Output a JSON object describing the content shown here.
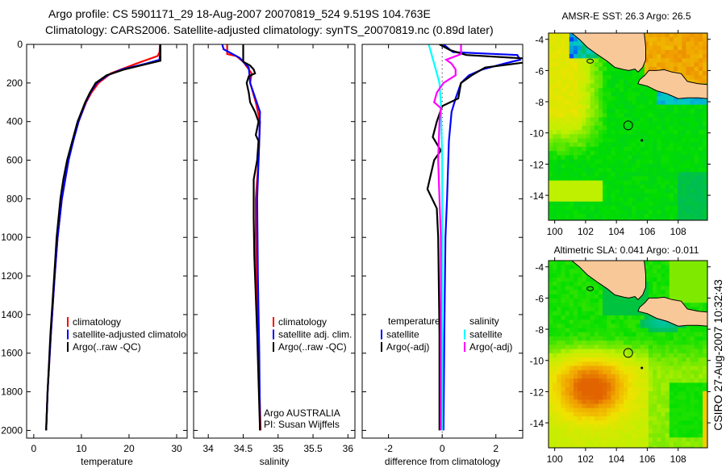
{
  "header": {
    "line1": "Argo profile: CS 5901171_29 18-Aug-2007 20070819_524 9.519S 104.763E",
    "line2": "Climatology: CARS2006. Satellite-adjusted climatology: synTS_20070819.nc (0.89d later)"
  },
  "footer": {
    "stamp": "CSIRO 27-Aug-2007 10:32:43",
    "credit1": "Argo AUSTRALIA",
    "credit2": "PI: Susan Wijffels"
  },
  "colors": {
    "red": "#ff0000",
    "blue": "#0000ff",
    "black": "#000000",
    "cyan": "#00ffff",
    "magenta": "#ff00ff",
    "land": "#f9c898"
  },
  "chart_data": [
    {
      "type": "line",
      "id": "temperature",
      "xlabel": "temperature",
      "ylabel": "",
      "xlim": [
        -1.5,
        32.2
      ],
      "ylim": [
        2040,
        0
      ],
      "xticks": [
        "0",
        "10",
        "20",
        "30"
      ],
      "xtick_values": [
        0,
        10,
        20,
        30
      ],
      "yticks": [
        "0",
        "200",
        "400",
        "600",
        "800",
        "1000",
        "1200",
        "1400",
        "1600",
        "1800",
        "2000"
      ],
      "ytick_values": [
        0,
        200,
        400,
        600,
        800,
        1000,
        1200,
        1400,
        1600,
        1800,
        2000
      ],
      "legend": [
        {
          "label": "climatology",
          "color": "#ff0000"
        },
        {
          "label": "satellite-adjusted climatology",
          "color": "#0000ff"
        },
        {
          "label": "Argo(..raw -QC)",
          "color": "#000000"
        }
      ],
      "series": [
        {
          "name": "climatology",
          "color": "#ff0000",
          "depth": [
            0,
            40,
            60,
            100,
            150,
            200,
            250,
            300,
            400,
            500,
            600,
            800,
            1000,
            1200,
            1500,
            1800,
            2000
          ],
          "values": [
            26.5,
            26.4,
            26,
            21.5,
            16.2,
            13.6,
            12.1,
            11,
            9.4,
            8.2,
            7.3,
            5.9,
            5.0,
            4.4,
            3.6,
            2.9,
            2.6
          ]
        },
        {
          "name": "satellite-adjusted climatology",
          "color": "#0000ff",
          "depth": [
            0,
            80,
            100,
            130,
            160,
            200,
            250,
            300,
            400,
            500,
            600,
            800,
            1000,
            1200,
            1500,
            1800,
            2000
          ],
          "values": [
            26.6,
            26.4,
            23.5,
            18.5,
            15.5,
            13.2,
            11.9,
            10.9,
            9.4,
            8.3,
            7.3,
            5.9,
            5.0,
            4.4,
            3.6,
            2.9,
            2.6
          ]
        },
        {
          "name": "Argo(..raw -QC)",
          "color": "#000000",
          "depth": [
            0,
            85,
            100,
            130,
            160,
            200,
            250,
            300,
            400,
            500,
            600,
            700,
            800,
            1000,
            1200,
            1500,
            1800,
            2000
          ],
          "values": [
            26.6,
            26.6,
            24,
            19,
            15.3,
            13.0,
            11.8,
            10.8,
            9.2,
            8.1,
            7.0,
            6.2,
            5.6,
            4.8,
            4.3,
            3.5,
            2.9,
            2.6
          ]
        }
      ]
    },
    {
      "type": "line",
      "id": "salinity",
      "xlabel": "salinity",
      "xlim": [
        33.79,
        36.1
      ],
      "ylim": [
        2040,
        0
      ],
      "xticks": [
        "34",
        "34.5",
        "35",
        "35.5",
        "36"
      ],
      "xtick_values": [
        34,
        34.5,
        35,
        35.5,
        36
      ],
      "legend": [
        {
          "label": "climatology",
          "color": "#ff0000"
        },
        {
          "label": "satellite adj. clim.",
          "color": "#0000ff"
        },
        {
          "label": "Argo(..raw -QC)",
          "color": "#000000"
        }
      ],
      "series": [
        {
          "name": "climatology",
          "color": "#ff0000",
          "depth": [
            0,
            50,
            60,
            90,
            150,
            200,
            300,
            400,
            600,
            800,
            1000,
            1500,
            2000
          ],
          "values": [
            34.27,
            34.27,
            34.4,
            34.5,
            34.62,
            34.6,
            34.68,
            34.74,
            34.72,
            34.68,
            34.68,
            34.71,
            34.75
          ]
        },
        {
          "name": "satellite adj. clim.",
          "color": "#0000ff",
          "depth": [
            0,
            25,
            70,
            120,
            200,
            350,
            500,
            800,
            1200,
            1600,
            2000
          ],
          "values": [
            34.2,
            34.22,
            34.45,
            34.58,
            34.6,
            34.74,
            34.73,
            34.7,
            34.71,
            34.73,
            34.74
          ]
        },
        {
          "name": "Argo(..raw -QC)",
          "color": "#000000",
          "depth": [
            0,
            90,
            110,
            130,
            150,
            165,
            200,
            250,
            300,
            350,
            400,
            470,
            500,
            600,
            700,
            900,
            1100,
            1500,
            2000
          ],
          "values": [
            34.5,
            34.5,
            34.6,
            34.65,
            34.67,
            34.58,
            34.55,
            34.58,
            34.6,
            34.67,
            34.72,
            34.68,
            34.72,
            34.7,
            34.65,
            34.65,
            34.66,
            34.7,
            34.74
          ]
        }
      ]
    },
    {
      "type": "line",
      "id": "difference",
      "xlabel": "difference from climatology",
      "xlim": [
        -2.98,
        3.0
      ],
      "ylim": [
        2040,
        0
      ],
      "xticks": [
        "-2",
        "0",
        "2"
      ],
      "xtick_values": [
        -2,
        0,
        2
      ],
      "legend_titles": [
        "temperature",
        "salinity"
      ],
      "legend": [
        {
          "label": "satellite",
          "color": "#0000ff",
          "group": "temperature"
        },
        {
          "label": "Argo(-adj)",
          "color": "#000000",
          "group": "temperature"
        },
        {
          "label": "satellite",
          "color": "#00ffff",
          "group": "salinity"
        },
        {
          "label": "Argo(-adj)",
          "color": "#ff00ff",
          "group": "salinity"
        }
      ],
      "series": [
        {
          "name": "temperature satellite",
          "color": "#0000ff",
          "depth": [
            0,
            40,
            55,
            80,
            100,
            130,
            160,
            200,
            280,
            350,
            500,
            800,
            1000,
            1500,
            2000
          ],
          "values": [
            0.05,
            0.4,
            2.8,
            2.9,
            2.3,
            1.5,
            1.0,
            0.7,
            0.5,
            0.35,
            0.25,
            0.18,
            0.12,
            0.08,
            0.05
          ]
        },
        {
          "name": "temperature Argo(-adj)",
          "color": "#000000",
          "depth": [
            0,
            30,
            55,
            75,
            95,
            120,
            160,
            200,
            280,
            320,
            400,
            480,
            550,
            600,
            750,
            850,
            1000,
            1500,
            2000
          ],
          "values": [
            -0.1,
            0.3,
            0.9,
            3.3,
            3.0,
            1.6,
            1.1,
            0.7,
            0.6,
            0.0,
            -0.2,
            -0.35,
            -0.05,
            -0.3,
            -0.55,
            -0.2,
            -0.15,
            -0.1,
            -0.1
          ]
        },
        {
          "name": "salinity satellite",
          "color": "#00ffff",
          "depth": [
            0,
            100,
            200,
            300,
            600,
            1000,
            2000
          ],
          "values": [
            -0.5,
            -0.3,
            -0.1,
            -0.05,
            0.0,
            0.0,
            0.0
          ]
        },
        {
          "name": "salinity Argo(-adj)",
          "color": "#ff00ff",
          "depth": [
            0,
            50,
            80,
            100,
            130,
            160,
            200,
            250,
            300,
            330,
            400,
            600,
            800,
            1000,
            1500,
            2000
          ],
          "values": [
            0.7,
            0.7,
            0.15,
            0.35,
            0.5,
            0.5,
            0.05,
            -0.2,
            -0.3,
            -0.05,
            -0.1,
            -0.15,
            -0.1,
            -0.05,
            -0.05,
            -0.05
          ]
        }
      ]
    },
    {
      "type": "heatmap",
      "id": "sst-map",
      "title": "AMSR-E SST: 26.3 Argo: 26.5",
      "sst": 26.3,
      "argo": 26.5,
      "xlim": [
        99.6,
        109.9
      ],
      "ylim": [
        -15.6,
        -3.6
      ],
      "xticks": [
        "100",
        "102",
        "104",
        "106",
        "108"
      ],
      "xtick_values": [
        100,
        102,
        104,
        106,
        108
      ],
      "yticks": [
        "-4",
        "-6",
        "-8",
        "-10",
        "-12",
        "-14"
      ],
      "ytick_values": [
        -4,
        -6,
        -8,
        -10,
        -12,
        -14
      ],
      "profile_location": [
        104.763,
        -9.519
      ]
    },
    {
      "type": "heatmap",
      "id": "sla-map",
      "title": "Altimetric SLA: 0.041  Argo: -0.011",
      "sla": 0.041,
      "argo": -0.011,
      "xlim": [
        99.6,
        109.9
      ],
      "ylim": [
        -15.6,
        -3.6
      ],
      "xticks": [
        "100",
        "102",
        "104",
        "106",
        "108"
      ],
      "xtick_values": [
        100,
        102,
        104,
        106,
        108
      ],
      "yticks": [
        "-4",
        "-6",
        "-8",
        "-10",
        "-12",
        "-14"
      ],
      "ytick_values": [
        -4,
        -6,
        -8,
        -10,
        -12,
        -14
      ],
      "profile_location": [
        104.763,
        -9.519
      ]
    }
  ]
}
